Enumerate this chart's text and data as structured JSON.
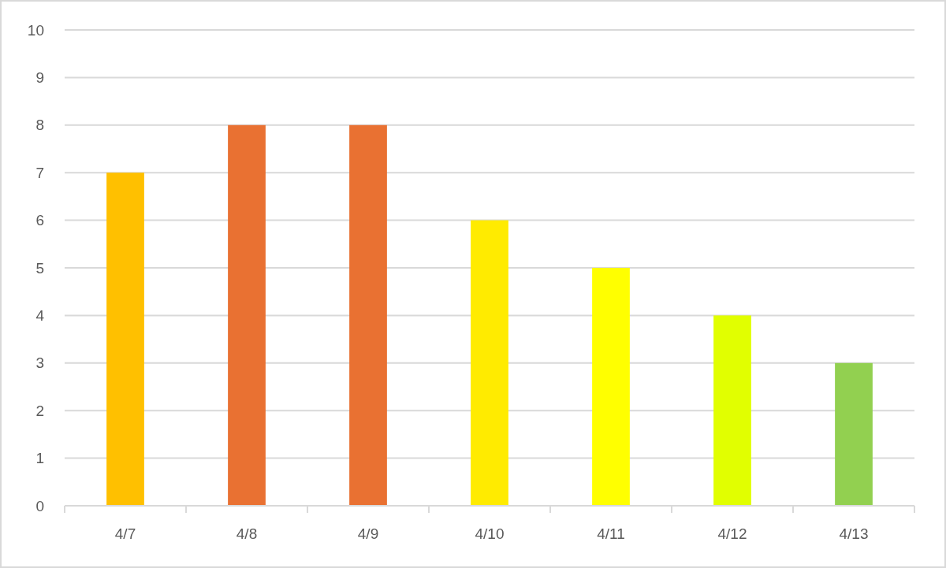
{
  "chart_data": {
    "type": "bar",
    "categories": [
      "4/7",
      "4/8",
      "4/9",
      "4/10",
      "4/11",
      "4/12",
      "4/13"
    ],
    "values": [
      7,
      8,
      8,
      6,
      5,
      4,
      3
    ],
    "colors": [
      "#ffc000",
      "#e97132",
      "#e97132",
      "#ffeb00",
      "#ffff00",
      "#e1ff00",
      "#92d050"
    ],
    "ylim": [
      0,
      10
    ],
    "yticks": [
      0,
      1,
      2,
      3,
      4,
      5,
      6,
      7,
      8,
      9,
      10
    ],
    "grid": "y"
  }
}
